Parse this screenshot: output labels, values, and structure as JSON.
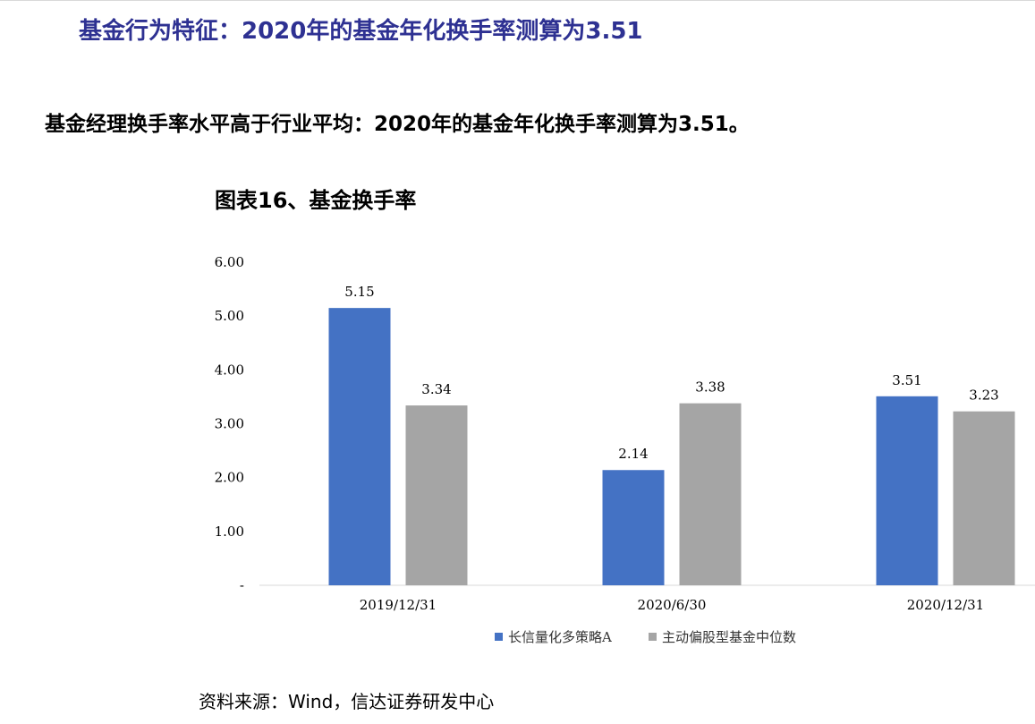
{
  "page_title": "基金行为特征：2020年的基金年化换手率测算为3.51",
  "subtitle": "基金经理换手率水平高于行业平均：2020年的基金年化换手率测算为3.51。",
  "source": "资料来源：Wind，信达证券研发中心",
  "chart_data": {
    "type": "bar",
    "title": "图表16、基金换手率",
    "categories": [
      "2019/12/31",
      "2020/6/30",
      "2020/12/31"
    ],
    "series": [
      {
        "name": "长信量化多策略A",
        "color": "#4472c4",
        "values": [
          5.15,
          2.14,
          3.51
        ],
        "labels": [
          "5.15",
          "2.14",
          "3.51"
        ]
      },
      {
        "name": "主动偏股型基金中位数",
        "color": "#a5a5a5",
        "values": [
          3.34,
          3.38,
          3.23
        ],
        "labels": [
          "3.34",
          "3.38",
          "3.23"
        ]
      }
    ],
    "ylim": [
      0,
      6
    ],
    "yticks": [
      0,
      1,
      2,
      3,
      4,
      5,
      6
    ],
    "ytick_labels": [
      "-",
      "1.00",
      "2.00",
      "3.00",
      "4.00",
      "5.00",
      "6.00"
    ],
    "grid": false,
    "legend": "bottom",
    "xlabel": "",
    "ylabel": ""
  }
}
